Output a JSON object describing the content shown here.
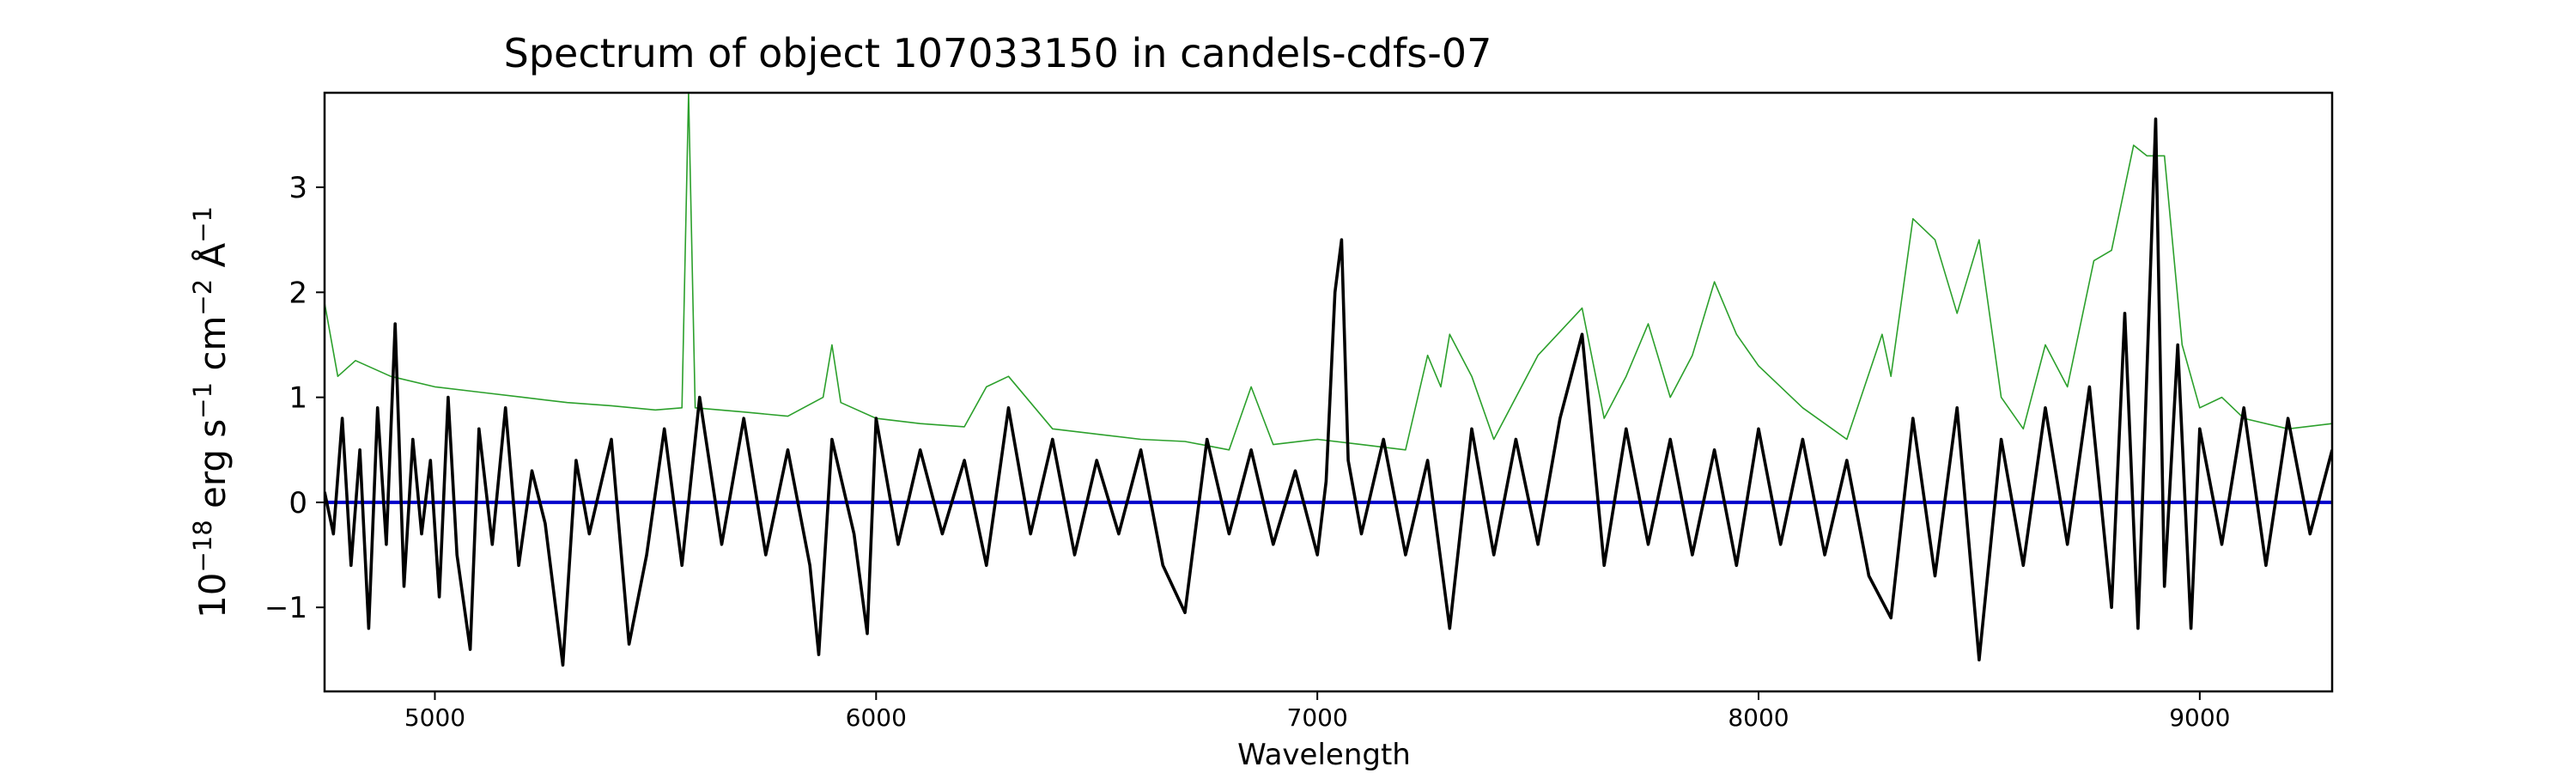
{
  "chart_data": {
    "type": "line",
    "title": "Spectrum of object 107033150 in candels-cdfs-07",
    "xlabel": "Wavelength",
    "ylabel_base": "10",
    "ylabel_exp": "−18",
    "ylabel_rest": " erg s",
    "ylabel_s_exp": "−1",
    "ylabel_cm": " cm",
    "ylabel_cm_exp": "−2",
    "ylabel_A": " Å",
    "ylabel_A_exp": "−1",
    "xlim": [
      4750,
      9300
    ],
    "ylim": [
      -1.8,
      3.9
    ],
    "x_ticks": [
      5000,
      6000,
      7000,
      8000,
      9000
    ],
    "x_tick_labels": [
      "5000",
      "6000",
      "7000",
      "8000",
      "9000"
    ],
    "y_ticks": [
      -1,
      0,
      1,
      2,
      3
    ],
    "y_tick_labels": [
      "−1",
      "0",
      "1",
      "2",
      "3"
    ],
    "grid": false,
    "legend": "none",
    "series": [
      {
        "role": "noise",
        "color": "#2ca02c",
        "points": [
          [
            4750,
            1.9
          ],
          [
            4780,
            1.2
          ],
          [
            4820,
            1.35
          ],
          [
            4900,
            1.2
          ],
          [
            5000,
            1.1
          ],
          [
            5100,
            1.05
          ],
          [
            5200,
            1.0
          ],
          [
            5300,
            0.95
          ],
          [
            5400,
            0.92
          ],
          [
            5500,
            0.88
          ],
          [
            5560,
            0.9
          ],
          [
            5575,
            3.9
          ],
          [
            5590,
            0.9
          ],
          [
            5700,
            0.86
          ],
          [
            5800,
            0.82
          ],
          [
            5880,
            1.0
          ],
          [
            5900,
            1.5
          ],
          [
            5920,
            0.95
          ],
          [
            6000,
            0.8
          ],
          [
            6100,
            0.75
          ],
          [
            6200,
            0.72
          ],
          [
            6250,
            1.1
          ],
          [
            6300,
            1.2
          ],
          [
            6400,
            0.7
          ],
          [
            6500,
            0.65
          ],
          [
            6600,
            0.6
          ],
          [
            6700,
            0.58
          ],
          [
            6800,
            0.5
          ],
          [
            6850,
            1.1
          ],
          [
            6900,
            0.55
          ],
          [
            7000,
            0.6
          ],
          [
            7100,
            0.55
          ],
          [
            7200,
            0.5
          ],
          [
            7250,
            1.4
          ],
          [
            7280,
            1.1
          ],
          [
            7300,
            1.6
          ],
          [
            7350,
            1.2
          ],
          [
            7400,
            0.6
          ],
          [
            7500,
            1.4
          ],
          [
            7600,
            1.85
          ],
          [
            7650,
            0.8
          ],
          [
            7700,
            1.2
          ],
          [
            7750,
            1.7
          ],
          [
            7800,
            1.0
          ],
          [
            7850,
            1.4
          ],
          [
            7900,
            2.1
          ],
          [
            7950,
            1.6
          ],
          [
            8000,
            1.3
          ],
          [
            8100,
            0.9
          ],
          [
            8200,
            0.6
          ],
          [
            8280,
            1.6
          ],
          [
            8300,
            1.2
          ],
          [
            8350,
            2.7
          ],
          [
            8400,
            2.5
          ],
          [
            8450,
            1.8
          ],
          [
            8500,
            2.5
          ],
          [
            8550,
            1.0
          ],
          [
            8600,
            0.7
          ],
          [
            8650,
            1.5
          ],
          [
            8700,
            1.1
          ],
          [
            8760,
            2.3
          ],
          [
            8800,
            2.4
          ],
          [
            8850,
            3.4
          ],
          [
            8880,
            3.3
          ],
          [
            8920,
            3.3
          ],
          [
            8960,
            1.5
          ],
          [
            9000,
            0.9
          ],
          [
            9050,
            1.0
          ],
          [
            9100,
            0.8
          ],
          [
            9200,
            0.7
          ],
          [
            9300,
            0.75
          ]
        ]
      },
      {
        "role": "model",
        "color": "#0000cc",
        "points": [
          [
            4750,
            0.0
          ],
          [
            9300,
            0.0
          ]
        ]
      },
      {
        "role": "flux",
        "color": "#000000",
        "points": [
          [
            4750,
            0.1
          ],
          [
            4770,
            -0.3
          ],
          [
            4790,
            0.8
          ],
          [
            4810,
            -0.6
          ],
          [
            4830,
            0.5
          ],
          [
            4850,
            -1.2
          ],
          [
            4870,
            0.9
          ],
          [
            4890,
            -0.4
          ],
          [
            4910,
            1.7
          ],
          [
            4930,
            -0.8
          ],
          [
            4950,
            0.6
          ],
          [
            4970,
            -0.3
          ],
          [
            4990,
            0.4
          ],
          [
            5010,
            -0.9
          ],
          [
            5030,
            1.0
          ],
          [
            5050,
            -0.5
          ],
          [
            5080,
            -1.4
          ],
          [
            5100,
            0.7
          ],
          [
            5130,
            -0.4
          ],
          [
            5160,
            0.9
          ],
          [
            5190,
            -0.6
          ],
          [
            5220,
            0.3
          ],
          [
            5250,
            -0.2
          ],
          [
            5290,
            -1.55
          ],
          [
            5320,
            0.4
          ],
          [
            5350,
            -0.3
          ],
          [
            5400,
            0.6
          ],
          [
            5440,
            -1.35
          ],
          [
            5480,
            -0.5
          ],
          [
            5520,
            0.7
          ],
          [
            5560,
            -0.6
          ],
          [
            5600,
            1.0
          ],
          [
            5650,
            -0.4
          ],
          [
            5700,
            0.8
          ],
          [
            5750,
            -0.5
          ],
          [
            5800,
            0.5
          ],
          [
            5850,
            -0.6
          ],
          [
            5870,
            -1.45
          ],
          [
            5900,
            0.6
          ],
          [
            5950,
            -0.3
          ],
          [
            5980,
            -1.25
          ],
          [
            6000,
            0.8
          ],
          [
            6050,
            -0.4
          ],
          [
            6100,
            0.5
          ],
          [
            6150,
            -0.3
          ],
          [
            6200,
            0.4
          ],
          [
            6250,
            -0.6
          ],
          [
            6300,
            0.9
          ],
          [
            6350,
            -0.3
          ],
          [
            6400,
            0.6
          ],
          [
            6450,
            -0.5
          ],
          [
            6500,
            0.4
          ],
          [
            6550,
            -0.3
          ],
          [
            6600,
            0.5
          ],
          [
            6650,
            -0.6
          ],
          [
            6700,
            -1.05
          ],
          [
            6750,
            0.6
          ],
          [
            6800,
            -0.3
          ],
          [
            6850,
            0.5
          ],
          [
            6900,
            -0.4
          ],
          [
            6950,
            0.3
          ],
          [
            7000,
            -0.5
          ],
          [
            7020,
            0.2
          ],
          [
            7040,
            2.0
          ],
          [
            7055,
            2.5
          ],
          [
            7070,
            0.4
          ],
          [
            7100,
            -0.3
          ],
          [
            7150,
            0.6
          ],
          [
            7200,
            -0.5
          ],
          [
            7250,
            0.4
          ],
          [
            7300,
            -1.2
          ],
          [
            7350,
            0.7
          ],
          [
            7400,
            -0.5
          ],
          [
            7450,
            0.6
          ],
          [
            7500,
            -0.4
          ],
          [
            7550,
            0.8
          ],
          [
            7600,
            1.6
          ],
          [
            7650,
            -0.6
          ],
          [
            7700,
            0.7
          ],
          [
            7750,
            -0.4
          ],
          [
            7800,
            0.6
          ],
          [
            7850,
            -0.5
          ],
          [
            7900,
            0.5
          ],
          [
            7950,
            -0.6
          ],
          [
            8000,
            0.7
          ],
          [
            8050,
            -0.4
          ],
          [
            8100,
            0.6
          ],
          [
            8150,
            -0.5
          ],
          [
            8200,
            0.4
          ],
          [
            8250,
            -0.7
          ],
          [
            8300,
            -1.1
          ],
          [
            8350,
            0.8
          ],
          [
            8400,
            -0.7
          ],
          [
            8450,
            0.9
          ],
          [
            8500,
            -1.5
          ],
          [
            8550,
            0.6
          ],
          [
            8600,
            -0.6
          ],
          [
            8650,
            0.9
          ],
          [
            8700,
            -0.4
          ],
          [
            8750,
            1.1
          ],
          [
            8800,
            -1.0
          ],
          [
            8830,
            1.8
          ],
          [
            8860,
            -1.2
          ],
          [
            8900,
            3.65
          ],
          [
            8920,
            -0.8
          ],
          [
            8950,
            1.5
          ],
          [
            8980,
            -1.2
          ],
          [
            9000,
            0.7
          ],
          [
            9050,
            -0.4
          ],
          [
            9100,
            0.9
          ],
          [
            9150,
            -0.6
          ],
          [
            9200,
            0.8
          ],
          [
            9250,
            -0.3
          ],
          [
            9300,
            0.5
          ]
        ]
      }
    ]
  }
}
